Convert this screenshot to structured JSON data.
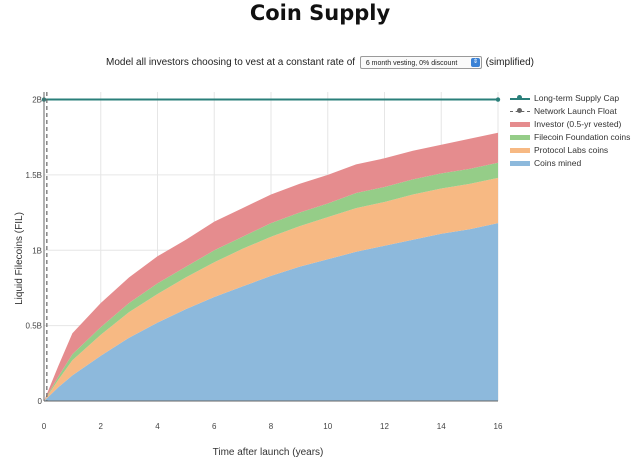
{
  "title": "Coin Supply",
  "controls": {
    "prefix": "Model all investors choosing to vest at a constant rate of",
    "select_value": "6 month vesting, 0% discount",
    "suffix": "(simplified)"
  },
  "chart_data": {
    "type": "area",
    "stacked": true,
    "xlabel": "Time after launch (years)",
    "ylabel": "Liquid Filecoins (FIL)",
    "xlim": [
      0,
      16
    ],
    "ylim": [
      0,
      2.05
    ],
    "x_ticks": [
      0,
      2,
      4,
      6,
      8,
      10,
      12,
      14,
      16
    ],
    "x_tick_labels": [
      "0",
      "2",
      "4",
      "6",
      "8",
      "10",
      "12",
      "14",
      "16"
    ],
    "y_ticks": [
      0,
      0.5,
      1,
      1.5,
      2
    ],
    "y_tick_labels": [
      "0",
      "0.5B",
      "1B",
      "1.5B",
      "2B"
    ],
    "grid": true,
    "legend_placement": "top-right",
    "x": [
      0,
      0.5,
      1,
      2,
      3,
      4,
      5,
      6,
      7,
      8,
      9,
      10,
      11,
      12,
      13,
      14,
      15,
      16
    ],
    "series": [
      {
        "name": "Coins mined",
        "color": "#8db9dc",
        "values": [
          0,
          0.09,
          0.17,
          0.3,
          0.42,
          0.52,
          0.61,
          0.69,
          0.76,
          0.83,
          0.89,
          0.94,
          0.99,
          1.03,
          1.07,
          1.11,
          1.14,
          1.18
        ]
      },
      {
        "name": "Protocol Labs coins",
        "color": "#f7b983",
        "values": [
          0,
          0.05,
          0.1,
          0.14,
          0.17,
          0.19,
          0.21,
          0.23,
          0.25,
          0.26,
          0.27,
          0.28,
          0.29,
          0.29,
          0.3,
          0.3,
          0.3,
          0.3
        ]
      },
      {
        "name": "Filecoin Foundation coins",
        "color": "#95cd88",
        "values": [
          0,
          0.02,
          0.04,
          0.05,
          0.06,
          0.07,
          0.07,
          0.08,
          0.08,
          0.09,
          0.09,
          0.09,
          0.1,
          0.1,
          0.1,
          0.1,
          0.1,
          0.1
        ]
      },
      {
        "name": "Investor (0.5-yr vested)",
        "color": "#e58c8e",
        "values": [
          0,
          0.07,
          0.14,
          0.16,
          0.17,
          0.18,
          0.18,
          0.19,
          0.19,
          0.19,
          0.19,
          0.19,
          0.19,
          0.19,
          0.19,
          0.19,
          0.2,
          0.2
        ]
      }
    ],
    "reference_lines": [
      {
        "name": "Long-term Supply Cap",
        "orientation": "horizontal",
        "value": 2,
        "color": "#2a7f7a",
        "style": "solid"
      },
      {
        "name": "Network Launch Float",
        "orientation": "vertical",
        "value": 0.1,
        "color": "#666666",
        "style": "dashed"
      }
    ]
  }
}
